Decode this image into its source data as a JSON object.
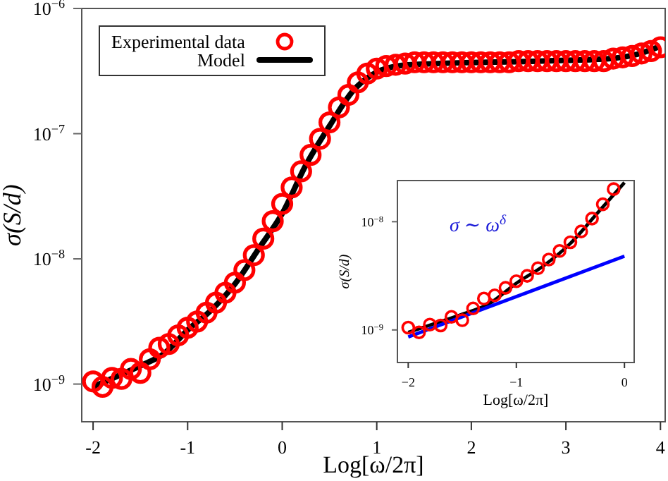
{
  "chart_data": [
    {
      "type": "scatter",
      "xlabel": "Log[ω/2π]",
      "ylabel": "σ(S/d)",
      "log": "y",
      "xlim": [
        -2.12,
        4.05
      ],
      "ylim": [
        5e-10,
        1e-06
      ],
      "xticks": [
        -2,
        -1,
        0,
        1,
        2,
        3,
        4
      ],
      "yticks": [
        {
          "value": 1e-09,
          "label": "10$^{−9}$"
        },
        {
          "value": 1e-08,
          "label": "10$^{−8}$"
        },
        {
          "value": 1e-07,
          "label": "10$^{−7}$"
        },
        {
          "value": 1e-06,
          "label": "10$^{−6}$"
        }
      ],
      "legend": "top left",
      "grid": false,
      "series": [
        {
          "name": "Experimental data",
          "marker": "circle",
          "color": "#ff0000",
          "x": [
            -2,
            -1.9,
            -1.8,
            -1.7,
            -1.6,
            -1.5,
            -1.4,
            -1.3,
            -1.2,
            -1.1,
            -1,
            -0.9,
            -0.8,
            -0.7,
            -0.6,
            -0.5,
            -0.4,
            -0.3,
            -0.2,
            -0.1,
            0,
            0.1,
            0.2,
            0.3,
            0.4,
            0.5,
            0.6,
            0.7,
            0.8,
            0.9,
            1,
            1.1,
            1.2,
            1.3,
            1.4,
            1.5,
            1.6,
            1.7,
            1.8,
            1.9,
            2,
            2.1,
            2.2,
            2.3,
            2.4,
            2.5,
            2.6,
            2.7,
            2.8,
            2.9,
            3,
            3.1,
            3.2,
            3.3,
            3.4,
            3.5,
            3.6,
            3.7,
            3.8,
            3.9,
            4
          ],
          "values": [
            1.05e-09,
            9.5e-10,
            1.12e-09,
            1.1e-09,
            1.32e-09,
            1.23e-09,
            1.58e-09,
            1.95e-09,
            2.09e-09,
            2.45e-09,
            2.82e-09,
            3.16e-09,
            3.72e-09,
            4.47e-09,
            5.37e-09,
            6.46e-09,
            8.13e-09,
            1.07e-08,
            1.45e-08,
            2e-08,
            2.75e-08,
            3.72e-08,
            5e-08,
            6.76e-08,
            9.1e-08,
            1.23e-07,
            1.62e-07,
            2.04e-07,
            2.57e-07,
            3.02e-07,
            3.31e-07,
            3.47e-07,
            3.55e-07,
            3.63e-07,
            3.72e-07,
            3.72e-07,
            3.72e-07,
            3.72e-07,
            3.72e-07,
            3.72e-07,
            3.72e-07,
            3.72e-07,
            3.72e-07,
            3.72e-07,
            3.72e-07,
            3.8e-07,
            3.8e-07,
            3.8e-07,
            3.8e-07,
            3.8e-07,
            3.8e-07,
            3.8e-07,
            3.8e-07,
            3.8e-07,
            3.8e-07,
            3.98e-07,
            4.07e-07,
            4.17e-07,
            4.37e-07,
            4.57e-07,
            4.9e-07
          ]
        },
        {
          "name": "Model",
          "type": "line",
          "marker": "none",
          "line_style": "solid",
          "color": "#000000",
          "x": [
            -2,
            -1.75,
            -1.5,
            -1.25,
            -1,
            -0.75,
            -0.5,
            -0.25,
            0,
            0.25,
            0.5,
            0.75,
            1,
            1.25,
            1.5,
            2,
            2.5,
            3,
            3.5,
            3.75,
            4
          ],
          "values": [
            9.5e-10,
            1.15e-09,
            1.4e-09,
            1.75e-09,
            2.7e-09,
            3.9e-09,
            6.3e-09,
            1.2e-08,
            2.3e-08,
            5.6e-08,
            1.15e-07,
            2.2e-07,
            3.1e-07,
            3.5e-07,
            3.6e-07,
            3.7e-07,
            3.75e-07,
            3.85e-07,
            4e-07,
            4.3e-07,
            5e-07
          ]
        }
      ]
    },
    {
      "type": "scatter",
      "xlabel": "Log[ω/2π]",
      "ylabel": "σ(S/d)",
      "log": "y",
      "xlim": [
        -2.1,
        0.09
      ],
      "ylim": [
        5e-10,
        2.4e-08
      ],
      "xticks": [
        {
          "value": -2,
          "label": "−2"
        },
        {
          "value": -1,
          "label": "−1"
        },
        0
      ],
      "yticks": [
        {
          "value": 1e-09,
          "label": "10$^{−9}$"
        },
        {
          "value": 1e-08,
          "label": "10$^{−8}$"
        }
      ],
      "grid": false,
      "annotations": [
        "σ ∼ ω$^{δ}$"
      ],
      "series": [
        {
          "marker": "circle",
          "color": "#ff0000",
          "x": [
            -2,
            -1.9,
            -1.8,
            -1.7,
            -1.6,
            -1.5,
            -1.4,
            -1.3,
            -1.2,
            -1.1,
            -1,
            -0.9,
            -0.8,
            -0.7,
            -0.6,
            -0.5,
            -0.4,
            -0.3,
            -0.2,
            -0.1
          ],
          "values": [
            1.05e-09,
            9.5e-10,
            1.12e-09,
            1.1e-09,
            1.32e-09,
            1.23e-09,
            1.58e-09,
            1.95e-09,
            2.09e-09,
            2.45e-09,
            2.82e-09,
            3.16e-09,
            3.72e-09,
            4.47e-09,
            5.37e-09,
            6.46e-09,
            8.13e-09,
            1.07e-08,
            1.45e-08,
            2e-08
          ]
        },
        {
          "type": "line",
          "marker": "none",
          "line_style": "solid",
          "color": "#000000",
          "x": [
            -2,
            -1.75,
            -1.5,
            -1.25,
            -1,
            -0.75,
            -0.5,
            -0.25,
            0
          ],
          "values": [
            9.5e-10,
            1.15e-09,
            1.4e-09,
            1.75e-09,
            2.7e-09,
            3.9e-09,
            6.3e-09,
            1.2e-08,
            2.3e-08
          ]
        },
        {
          "type": "line",
          "marker": "none",
          "line_style": "solid",
          "color": "#0000ff",
          "x": [
            -2,
            0
          ],
          "values": [
            8.6e-10,
            4.8e-09
          ]
        }
      ]
    }
  ]
}
